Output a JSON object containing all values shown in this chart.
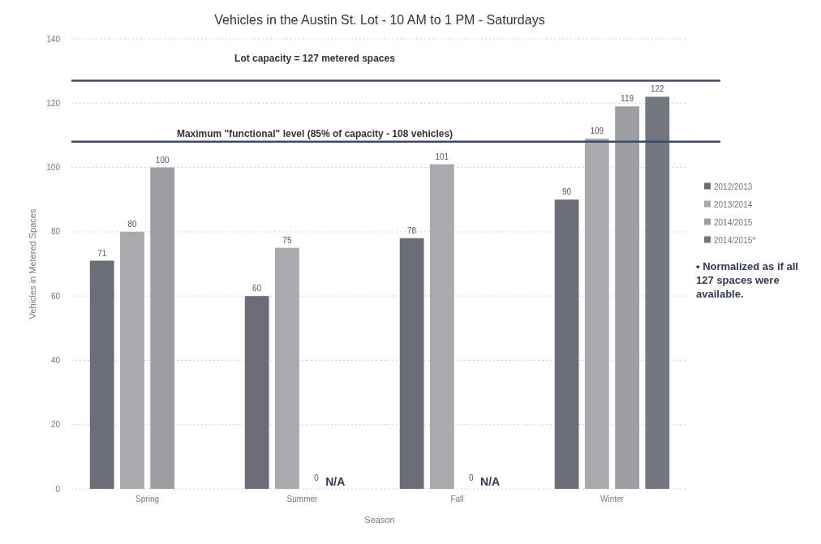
{
  "chart_data": {
    "type": "bar",
    "title": "Vehicles in the Austin St. Lot - 10 AM to 1 PM - Saturdays",
    "xlabel": "Season",
    "ylabel": "Vehicles in Metered Spaces",
    "categories": [
      "Spring",
      "Summer",
      "Fall",
      "Winter"
    ],
    "series": [
      {
        "name": "2012/2013",
        "color": "#6b6e76",
        "values": [
          71,
          60,
          78,
          90
        ]
      },
      {
        "name": "2013/2014",
        "color": "#a9aaae",
        "values": [
          80,
          75,
          101,
          109
        ]
      },
      {
        "name": "2014/2015",
        "color": "#9d9ea4",
        "values": [
          100,
          null,
          null,
          119
        ]
      },
      {
        "name": "2014/2015*",
        "color": "#74777f",
        "values": [
          null,
          null,
          null,
          122
        ]
      }
    ],
    "ylim": [
      0,
      140
    ],
    "yticks": [
      0,
      20,
      40,
      60,
      80,
      100,
      120,
      140
    ],
    "grid": "y",
    "legend": "right",
    "data_labels": true,
    "ref_lines": [
      {
        "axis": "y",
        "value": 127,
        "label": "Lot capacity = 127 metered spaces",
        "color": "#3b4a66"
      },
      {
        "axis": "y",
        "value": 108,
        "label": "Maximum \"functional\" level (85% of capacity - 108 vehicles)",
        "color": "#3b4a66"
      }
    ],
    "annotations": [
      {
        "text": "0",
        "x": "Summer",
        "y": 0
      },
      {
        "text": "N/A",
        "x": "Summer",
        "y": 0
      },
      {
        "text": "0",
        "x": "Fall",
        "y": 0
      },
      {
        "text": "N/A",
        "x": "Fall",
        "y": 0
      },
      "• Normalized as if all 127 spaces were available."
    ]
  }
}
